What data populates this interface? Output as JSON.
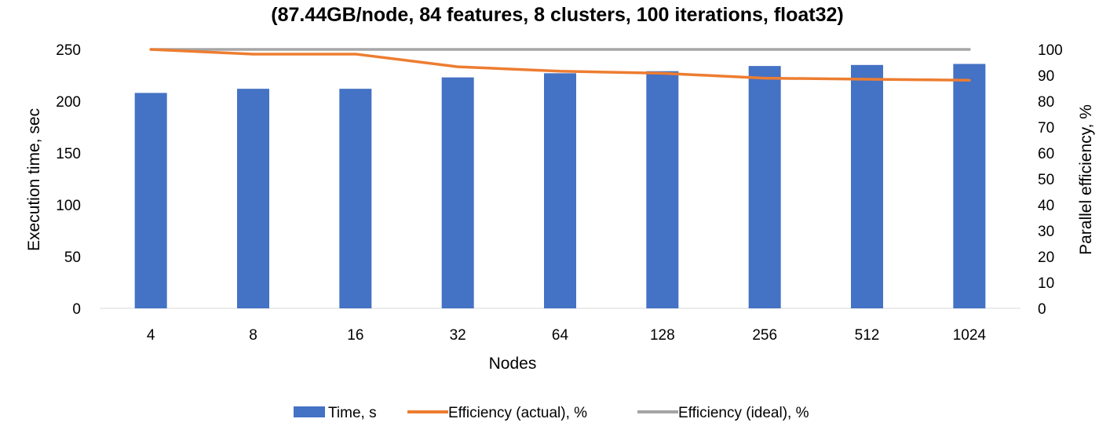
{
  "chart_data": {
    "type": "bar",
    "title": "(87.44GB/node, 84 features, 8 clusters, 100 iterations, float32)",
    "xlabel": "Nodes",
    "ylabel": "Execution time, sec",
    "y2label": "Parallel efficiency, %",
    "categories": [
      "4",
      "8",
      "16",
      "32",
      "64",
      "128",
      "256",
      "512",
      "1024"
    ],
    "ylim": [
      0,
      250
    ],
    "yticks": [
      "0",
      "50",
      "100",
      "150",
      "200",
      "250"
    ],
    "y2lim": [
      0,
      100
    ],
    "y2ticks": [
      "0",
      "10",
      "20",
      "30",
      "40",
      "50",
      "60",
      "70",
      "80",
      "90",
      "100"
    ],
    "grid": false,
    "legend_position": "bottom",
    "series": [
      {
        "name": "Time, s",
        "type": "bar",
        "axis": "left",
        "color": "#4472C4",
        "values": [
          208,
          212,
          212,
          223,
          227,
          229,
          234,
          235,
          236
        ]
      },
      {
        "name": "Efficiency (actual), %",
        "type": "line",
        "axis": "right",
        "color": "#ED7D31",
        "values": [
          100,
          98.2,
          98.2,
          93.3,
          91.6,
          90.8,
          88.9,
          88.5,
          88.1
        ]
      },
      {
        "name": "Efficiency (ideal), %",
        "type": "line",
        "axis": "right",
        "color": "#A5A5A5",
        "values": [
          100,
          100,
          100,
          100,
          100,
          100,
          100,
          100,
          100
        ]
      }
    ]
  }
}
